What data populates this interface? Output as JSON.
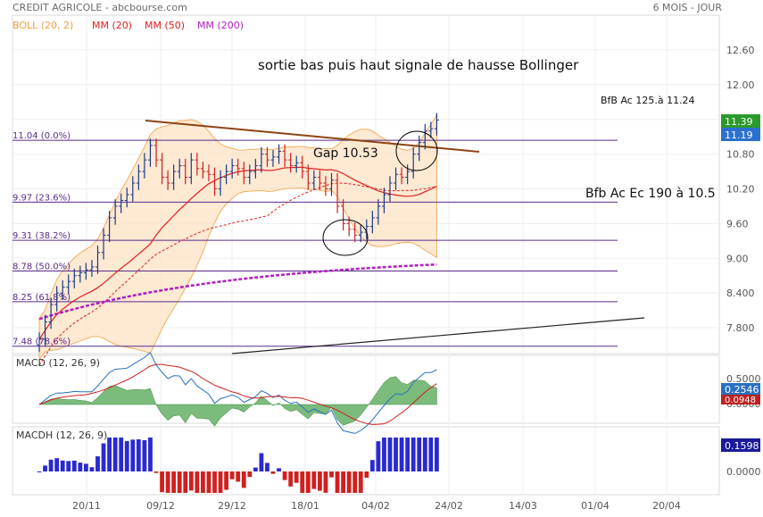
{
  "header": {
    "title": "CREDIT AGRICOLE - abcbourse.com",
    "period": "6 MOIS - JOUR"
  },
  "colors": {
    "boll": "#f0a040",
    "mm20": "#e02020",
    "mm50": "#e02020",
    "mm200": "#b020c0",
    "fib": "#5a2a8a",
    "macd_line": "#2a70c0",
    "signal_line": "#d02020",
    "macd_hist": "#5aaa5a",
    "macdh_pos": "#2a2ad0",
    "macdh_neg": "#d02020",
    "last_price_bg": "#2a9a2a",
    "boll_band_bg": "#2a70d0"
  },
  "legend": [
    {
      "label": "BOLL (20, 2)",
      "color": "#f0a040"
    },
    {
      "label": "MM (20)",
      "color": "#e02020"
    },
    {
      "label": "MM (50)",
      "color": "#e02020"
    },
    {
      "label": "MM (200)",
      "color": "#b020c0"
    }
  ],
  "annotations": {
    "main_text": "sortie bas puis haut signale de hausse Bollinger",
    "bfb1": "BfB Ac 125.à 11.24",
    "bfb2": "Bfb Ac Ec 190 à 10.5",
    "gap": "Gap 10.53"
  },
  "price_badges": [
    {
      "value": "11.39"
    },
    {
      "value": "11.19"
    }
  ],
  "macd": {
    "label": "MACD (12, 26, 9)",
    "badges": [
      "0.2546",
      "0.0948"
    ],
    "ticks": [
      "0.5000",
      "0.0000"
    ]
  },
  "macdh": {
    "label": "MACDH (12, 26, 9)",
    "badge": "0.1598",
    "ticks": [
      "0.0000"
    ]
  },
  "chart_data": {
    "type": "candlestick",
    "ylim": [
      7.5,
      12.9
    ],
    "y_ticks": [
      "12.60",
      "12.00",
      "11.40",
      "10.80",
      "10.20",
      "9.60",
      "9.00",
      "8.400",
      "7.800"
    ],
    "x_ticks": [
      "20/11",
      "09/12",
      "29/12",
      "18/01",
      "04/02",
      "24/02",
      "14/03",
      "01/04",
      "20/04"
    ],
    "fibonacci": [
      {
        "label": "11.04 (0.0%)",
        "value": 11.04
      },
      {
        "label": "9.97 (23.6%)",
        "value": 9.97
      },
      {
        "label": "9.31 (38.2%)",
        "value": 9.31
      },
      {
        "label": "8.78 (50.0%)",
        "value": 8.78
      },
      {
        "label": "8.25 (61.8%)",
        "value": 8.25
      },
      {
        "label": "7.48 (78.6%)",
        "value": 7.48
      }
    ],
    "closes": [
      7.6,
      7.9,
      8.2,
      8.4,
      8.5,
      8.6,
      8.7,
      8.75,
      8.8,
      8.85,
      9.1,
      9.4,
      9.7,
      9.9,
      10.0,
      10.1,
      10.3,
      10.5,
      10.7,
      10.95,
      10.7,
      10.4,
      10.3,
      10.5,
      10.6,
      10.4,
      10.7,
      10.55,
      10.5,
      10.45,
      10.2,
      10.4,
      10.5,
      10.6,
      10.55,
      10.4,
      10.5,
      10.6,
      10.8,
      10.7,
      10.75,
      10.85,
      10.7,
      10.6,
      10.65,
      10.5,
      10.3,
      10.4,
      10.3,
      10.2,
      10.35,
      9.9,
      9.6,
      9.5,
      9.4,
      9.45,
      9.55,
      9.7,
      9.9,
      10.1,
      10.3,
      10.45,
      10.4,
      10.5,
      10.8,
      11.0,
      11.2,
      11.24,
      11.39
    ]
  }
}
